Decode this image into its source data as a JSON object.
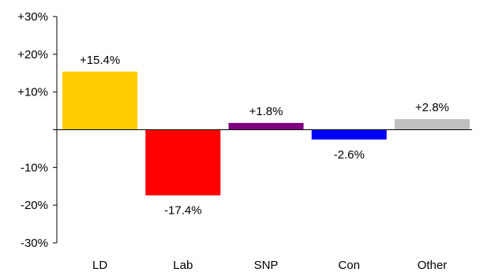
{
  "chart_data": {
    "type": "bar",
    "categories": [
      "LD",
      "Lab",
      "SNP",
      "Con",
      "Other"
    ],
    "values": [
      15.4,
      -17.4,
      1.8,
      -2.6,
      2.8
    ],
    "data_labels": [
      "+15.4%",
      "-17.4%",
      "+1.8%",
      "-2.6%",
      "+2.8%"
    ],
    "colors": [
      "#FFCC00",
      "#FF0000",
      "#800080",
      "#0000FF",
      "#C0C0C0"
    ],
    "ylim": [
      -30,
      30
    ],
    "yticks": [
      30,
      20,
      10,
      0,
      -10,
      -20,
      -30
    ],
    "ytick_labels": [
      "+30%",
      "+20%",
      "+10%",
      "",
      "-10%",
      "-20%",
      "-30%"
    ],
    "grid": false,
    "legend": "none"
  }
}
